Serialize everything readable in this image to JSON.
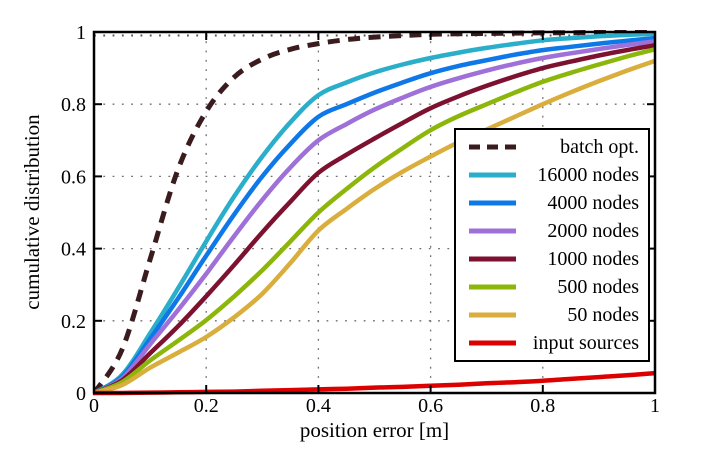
{
  "figure": {
    "background": "#ffffff",
    "axis_color": "#000000",
    "grid_color": "#6f6f6f"
  },
  "chart_data": {
    "type": "line",
    "title": "",
    "xlabel": "position error [m]",
    "ylabel": "cumulative distribution",
    "xlim": [
      0,
      1
    ],
    "ylim": [
      0,
      1
    ],
    "grid": "dotted",
    "legend_position": "right-middle",
    "x_ticks": [
      "0",
      "0.2",
      "0.4",
      "0.6",
      "0.8",
      "1"
    ],
    "y_ticks": [
      "0",
      "0.2",
      "0.4",
      "0.6",
      "0.8",
      "1"
    ],
    "x_tick_values": [
      0,
      0.2,
      0.4,
      0.6,
      0.8,
      1
    ],
    "y_tick_values": [
      0,
      0.2,
      0.4,
      0.6,
      0.8,
      1
    ],
    "x": [
      0,
      0.05,
      0.1,
      0.15,
      0.2,
      0.25,
      0.3,
      0.35,
      0.4,
      0.45,
      0.5,
      0.55,
      0.6,
      0.65,
      0.7,
      0.75,
      0.8,
      0.85,
      0.9,
      0.95,
      1
    ],
    "series": [
      {
        "name": "batch opt.",
        "color": "#3a1b1e",
        "dash": true,
        "values": [
          0,
          0.12,
          0.37,
          0.62,
          0.78,
          0.875,
          0.925,
          0.952,
          0.968,
          0.979,
          0.986,
          0.99,
          0.994,
          0.995,
          0.996,
          0.997,
          0.998,
          0.998,
          0.999,
          0.999,
          1.0
        ]
      },
      {
        "name": "16000 nodes",
        "color": "#2aaeca",
        "dash": false,
        "values": [
          0,
          0.05,
          0.165,
          0.29,
          0.42,
          0.545,
          0.655,
          0.75,
          0.825,
          0.86,
          0.888,
          0.91,
          0.928,
          0.943,
          0.956,
          0.967,
          0.977,
          0.983,
          0.988,
          0.992,
          0.995
        ]
      },
      {
        "name": "4000 nodes",
        "color": "#0e78e8",
        "dash": false,
        "values": [
          0,
          0.045,
          0.15,
          0.262,
          0.38,
          0.495,
          0.6,
          0.69,
          0.765,
          0.8,
          0.832,
          0.86,
          0.886,
          0.906,
          0.922,
          0.937,
          0.95,
          0.959,
          0.968,
          0.976,
          0.983
        ]
      },
      {
        "name": "2000 nodes",
        "color": "#9e70d8",
        "dash": false,
        "values": [
          0,
          0.04,
          0.135,
          0.23,
          0.33,
          0.435,
          0.535,
          0.625,
          0.7,
          0.745,
          0.785,
          0.818,
          0.848,
          0.872,
          0.893,
          0.912,
          0.928,
          0.941,
          0.953,
          0.964,
          0.974
        ]
      },
      {
        "name": "1000 nodes",
        "color": "#7d1230",
        "dash": false,
        "values": [
          0,
          0.035,
          0.11,
          0.185,
          0.268,
          0.355,
          0.445,
          0.53,
          0.61,
          0.66,
          0.705,
          0.748,
          0.789,
          0.822,
          0.851,
          0.877,
          0.9,
          0.918,
          0.935,
          0.95,
          0.963
        ]
      },
      {
        "name": "500 nodes",
        "color": "#8cb70a",
        "dash": false,
        "values": [
          0,
          0.03,
          0.09,
          0.145,
          0.202,
          0.268,
          0.34,
          0.42,
          0.5,
          0.565,
          0.625,
          0.678,
          0.728,
          0.767,
          0.8,
          0.832,
          0.862,
          0.887,
          0.91,
          0.932,
          0.952
        ]
      },
      {
        "name": "50 nodes",
        "color": "#d9ae3c",
        "dash": false,
        "values": [
          0,
          0.022,
          0.07,
          0.112,
          0.155,
          0.21,
          0.275,
          0.36,
          0.45,
          0.51,
          0.565,
          0.613,
          0.655,
          0.695,
          0.73,
          0.765,
          0.8,
          0.833,
          0.864,
          0.893,
          0.92
        ]
      },
      {
        "name": "input sources",
        "color": "#dc0000",
        "dash": false,
        "values": [
          0,
          0,
          0.001,
          0.002,
          0.003,
          0.004,
          0.006,
          0.008,
          0.01,
          0.012,
          0.015,
          0.017,
          0.02,
          0.023,
          0.027,
          0.03,
          0.034,
          0.039,
          0.044,
          0.049,
          0.055
        ]
      }
    ]
  }
}
